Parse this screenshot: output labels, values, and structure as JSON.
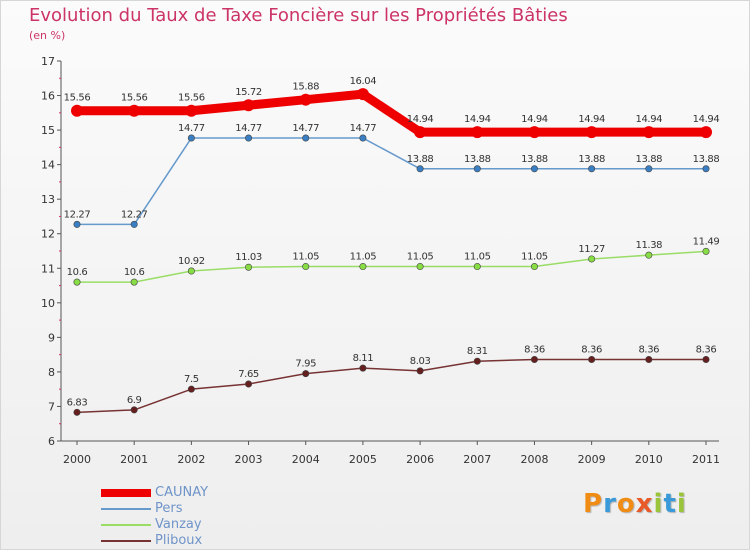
{
  "title": "Evolution du Taux de Taxe Foncière sur les Propriétés Bâties",
  "unit": "(en %)",
  "logo": {
    "text": "Proxiti"
  },
  "chart_data": {
    "type": "line",
    "title": "Evolution du Taux de Taxe Foncière sur les Propriétés Bâties",
    "ylabel": "(en %)",
    "xlabel": "",
    "ylim": [
      6,
      17
    ],
    "yticks": [
      6,
      7,
      8,
      9,
      10,
      11,
      12,
      13,
      14,
      15,
      16,
      17
    ],
    "grid": false,
    "legend": "bottom-left",
    "x": [
      "2000",
      "2001",
      "2002",
      "2003",
      "2004",
      "2005",
      "2006",
      "2007",
      "2008",
      "2009",
      "2010",
      "2011"
    ],
    "series": [
      {
        "name": "CAUNAY",
        "color": "#ee0000",
        "values": [
          15.56,
          15.56,
          15.56,
          15.72,
          15.88,
          16.04,
          14.94,
          14.94,
          14.94,
          14.94,
          14.94,
          14.94
        ],
        "labels": [
          "15.56",
          "15.56",
          "15.56",
          "15.72",
          "15.88",
          "16.04",
          "14.94",
          "14.94",
          "14.94",
          "14.94",
          "14.94",
          "14.94"
        ]
      },
      {
        "name": "Pers",
        "color": "#6699cc",
        "marker": "#3a7fc4",
        "values": [
          12.27,
          12.27,
          14.77,
          14.77,
          14.77,
          14.77,
          13.88,
          13.88,
          13.88,
          13.88,
          13.88,
          13.88
        ],
        "labels": [
          "12.27",
          "12.27",
          "14.77",
          "14.77",
          "14.77",
          "14.77",
          "13.88",
          "13.88",
          "13.88",
          "13.88",
          "13.88",
          "13.88"
        ]
      },
      {
        "name": "Vanzay",
        "color": "#99dd66",
        "marker": "#88dd44",
        "values": [
          10.6,
          10.6,
          10.92,
          11.03,
          11.05,
          11.05,
          11.05,
          11.05,
          11.05,
          11.27,
          11.38,
          11.49
        ],
        "labels": [
          "10.6",
          "10.6",
          "10.92",
          "11.03",
          "11.05",
          "11.05",
          "11.05",
          "11.05",
          "11.05",
          "11.27",
          "11.38",
          "11.49"
        ]
      },
      {
        "name": "Pliboux",
        "color": "#773333",
        "marker": "#661f1f",
        "values": [
          6.83,
          6.9,
          7.5,
          7.65,
          7.95,
          8.11,
          8.03,
          8.31,
          8.36,
          8.36,
          8.36,
          8.36
        ],
        "labels": [
          "6.83",
          "6.9",
          "7.5",
          "7.65",
          "7.95",
          "8.11",
          "8.03",
          "8.31",
          "8.36",
          "8.36",
          "8.36",
          "8.36"
        ]
      }
    ]
  }
}
